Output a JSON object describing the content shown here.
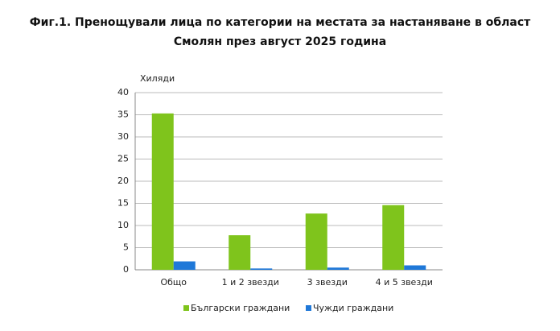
{
  "chart_data": {
    "type": "bar",
    "title": "Фиг.1. Пренощували лица по категории на местата за настаняване в област Смолян през август 2025 година",
    "y_label": "Хиляди",
    "categories": [
      "Общо",
      "1 и 2 звезди",
      "3 звезди",
      "4 и 5 звезди"
    ],
    "series": [
      {
        "name": "Български граждани",
        "color": "#7fc41c",
        "values": [
          35.3,
          7.8,
          12.7,
          14.6
        ]
      },
      {
        "name": "Чужди граждани",
        "color": "#1f78d8",
        "values": [
          1.9,
          0.3,
          0.5,
          1.0
        ]
      }
    ],
    "ylim": [
      0,
      40
    ],
    "yticks": [
      0,
      5,
      10,
      15,
      20,
      25,
      30,
      35,
      40
    ],
    "grid": true
  }
}
